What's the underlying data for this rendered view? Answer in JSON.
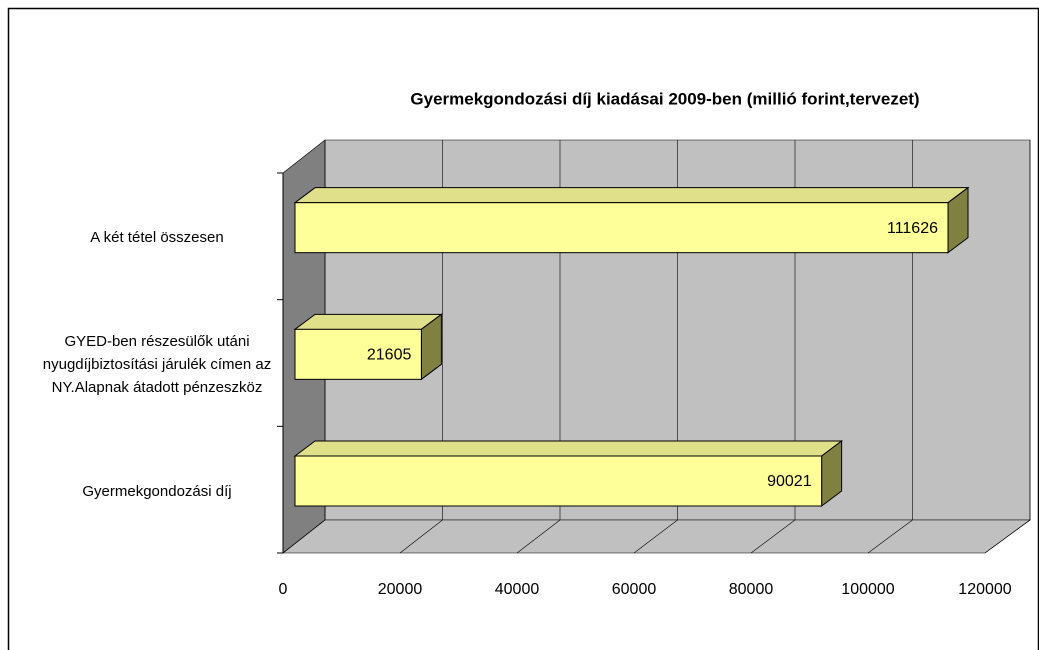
{
  "chart_data": {
    "type": "bar3d_horizontal",
    "title": "Gyermekgondozási díj kiadásai 2009-ben (millió forint,tervezet)",
    "categories": [
      "Gyermekgondozási díj",
      "GYED-ben részesülők utáni nyugdíjbiztosítási járulék címen az NY.Alapnak átadott pénzeszköz",
      "A két tétel összesen"
    ],
    "values": [
      90021,
      21605,
      111626
    ],
    "color": "#ffff99",
    "xlim": [
      0,
      120000
    ],
    "xticks": [
      0,
      20000,
      40000,
      60000,
      80000,
      100000,
      120000
    ],
    "grid": true
  }
}
